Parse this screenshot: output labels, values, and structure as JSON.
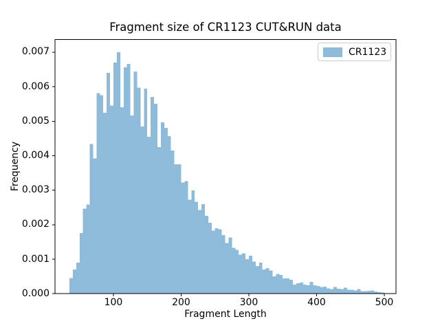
{
  "chart_data": {
    "type": "bar",
    "chart_kind": "histogram",
    "title": "Fragment size of CR1123 CUT&RUN data",
    "xlabel": "Fragment Length",
    "ylabel": "Frequency",
    "legend": {
      "entries": [
        "CR1123"
      ],
      "position": "upper right"
    },
    "bar_color": "#8fbbda",
    "background_color": "#ffffff",
    "spine_color": "#000000",
    "legend_border_color": "#cccccc",
    "grid": false,
    "bin_start": 35,
    "bin_width": 5,
    "frequencies": [
      0.00045,
      0.0007,
      0.0009,
      0.00176,
      0.00246,
      0.00258,
      0.00434,
      0.00392,
      0.00581,
      0.00575,
      0.00524,
      0.0064,
      0.00545,
      0.0067,
      0.007,
      0.0054,
      0.00656,
      0.00666,
      0.00517,
      0.00644,
      0.00597,
      0.00485,
      0.00594,
      0.00455,
      0.0057,
      0.0055,
      0.00425,
      0.00497,
      0.00481,
      0.00457,
      0.00415,
      0.00375,
      0.00375,
      0.00322,
      0.00326,
      0.00272,
      0.00299,
      0.00266,
      0.00243,
      0.00259,
      0.00226,
      0.00206,
      0.00183,
      0.0019,
      0.00187,
      0.0017,
      0.00147,
      0.00163,
      0.00133,
      0.00127,
      0.00113,
      0.00117,
      0.001,
      0.0011,
      0.00093,
      0.0008,
      0.0009,
      0.0007,
      0.00074,
      0.00067,
      0.0005,
      0.00057,
      0.00054,
      0.00044,
      0.00044,
      0.0004,
      0.00026,
      0.0003,
      0.00032,
      0.00026,
      0.00024,
      0.00034,
      0.00024,
      0.00022,
      0.00019,
      0.0002,
      0.00015,
      0.00013,
      0.00019,
      0.00014,
      0.00013,
      0.00017,
      0.00011,
      0.00011,
      9e-05,
      0.00013,
      7e-05,
      7e-05,
      8e-05,
      9e-05,
      6e-05,
      4e-05,
      3e-05
    ],
    "xticks": [
      "100",
      "200",
      "300",
      "400",
      "500"
    ],
    "yticks": [
      "0.000",
      "0.001",
      "0.002",
      "0.003",
      "0.004",
      "0.005",
      "0.006",
      "0.007"
    ],
    "xlim": [
      13.7,
      517.3
    ],
    "ylim": [
      0,
      0.007365
    ]
  }
}
